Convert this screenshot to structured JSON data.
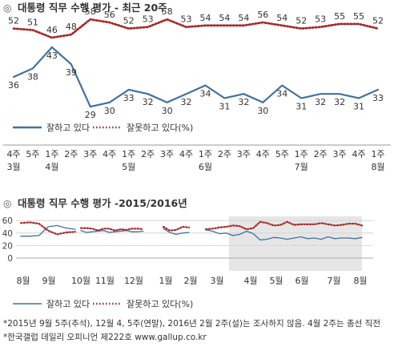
{
  "chart_data": [
    {
      "type": "line",
      "title": "대통령 직무 수행 평가 - 최근 20주",
      "title_marker": "◎",
      "x_ticks": [
        [
          "4주",
          "3월"
        ],
        [
          "5주",
          ""
        ],
        [
          "1주",
          "4월"
        ],
        [
          "2주",
          ""
        ],
        [
          "3주",
          ""
        ],
        [
          "4주",
          ""
        ],
        [
          "1주",
          "5월"
        ],
        [
          "2주",
          ""
        ],
        [
          "3주",
          ""
        ],
        [
          "4주",
          ""
        ],
        [
          "1주",
          "6월"
        ],
        [
          "2주",
          ""
        ],
        [
          "3주",
          ""
        ],
        [
          "4주",
          ""
        ],
        [
          "5주",
          ""
        ],
        [
          "1주",
          "7월"
        ],
        [
          "2주",
          ""
        ],
        [
          "3주",
          ""
        ],
        [
          "4주",
          ""
        ],
        [
          "1주",
          "8월"
        ]
      ],
      "series": [
        {
          "name": "잘하고 있다",
          "color": "#41729f",
          "style": "solid",
          "values": [
            36,
            38,
            43,
            39,
            29,
            30,
            33,
            32,
            30,
            32,
            34,
            31,
            32,
            30,
            34,
            31,
            32,
            32,
            31,
            33
          ]
        },
        {
          "name": "잘못하고 있다(%)",
          "color": "#a52a2a",
          "style": "dotted",
          "values": [
            52,
            51,
            46,
            48,
            58,
            56,
            52,
            53,
            58,
            53,
            54,
            54,
            54,
            56,
            54,
            52,
            53,
            55,
            55,
            52
          ]
        }
      ],
      "legend_placement": "bottom-left",
      "grid": false
    },
    {
      "type": "line",
      "title": "대통령 직무 수행 평가 -2015/2016년",
      "title_marker": "◎",
      "y_ticks": [
        0,
        20,
        40,
        60
      ],
      "ylim": [
        0,
        65
      ],
      "x_tick_labels": [
        "8월",
        "9월",
        "10월",
        "11월",
        "12월",
        "1월",
        "2월",
        "3월",
        "4월",
        "5월",
        "6월",
        "7월",
        "8월"
      ],
      "grid": true,
      "highlight": "최근 20주",
      "series": [
        {
          "name": "잘하고 있다",
          "color": "#41729f",
          "style": "solid",
          "segments": [
            [
              35,
              35,
              36,
              50,
              52,
              48,
              46
            ],
            [
              44,
              41,
              42,
              43,
              44,
              41,
              42,
              43,
              44,
              42,
              42,
              43
            ],
            [
              47,
              41,
              38,
              40,
              41
            ],
            [
              45,
              43,
              39,
              40,
              36,
              38,
              43,
              39,
              29,
              30,
              33,
              32,
              30,
              32,
              34,
              31,
              32,
              30,
              34,
              31,
              32,
              32,
              31,
              33
            ]
          ]
        },
        {
          "name": "잘못하고 있다(%)",
          "color": "#a52a2a",
          "style": "dotted",
          "segments": [
            [
              56,
              57,
              55,
              44,
              38,
              41,
              42
            ],
            [
              48,
              48,
              47,
              44,
              47,
              47,
              44,
              46,
              45,
              47,
              47,
              46
            ],
            [
              50,
              44,
              45,
              50,
              49
            ],
            [
              46,
              47,
              49,
              50,
              52,
              51,
              46,
              48,
              58,
              56,
              52,
              53,
              58,
              53,
              54,
              54,
              54,
              56,
              54,
              52,
              53,
              55,
              55,
              52
            ]
          ]
        }
      ],
      "legend_placement": "bottom-left"
    }
  ],
  "footnotes": [
    "*2015년 9월 5주(추석), 12월 4, 5주(연말), 2016년 2월 2주(설)는 조사하지 않음. 4월 2주는 총선 직전",
    "*한국갤럽 데일리 오피니언 제222호 www.gallup.co.kr"
  ]
}
